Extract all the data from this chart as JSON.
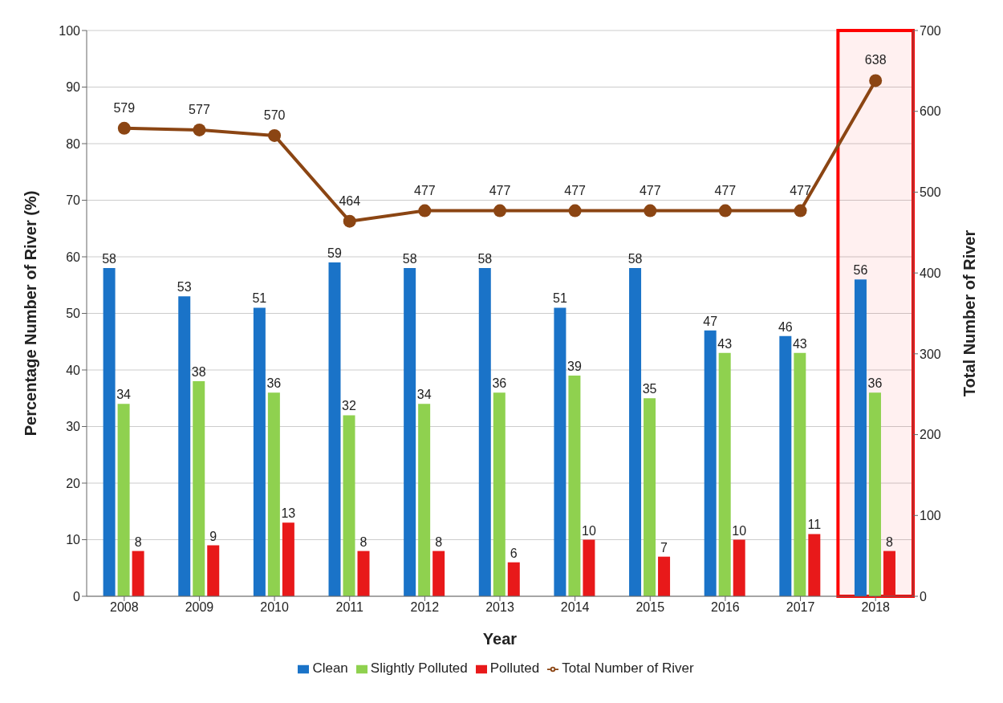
{
  "chart_data": {
    "type": "bar",
    "xlabel": "Year",
    "ylabel": "Percentage Number of River (%)",
    "y2label": "Total Number of River",
    "categories": [
      "2008",
      "2009",
      "2010",
      "2011",
      "2012",
      "2013",
      "2014",
      "2015",
      "2016",
      "2017",
      "2018"
    ],
    "series": [
      {
        "name": "Clean",
        "color": "#1a73c8",
        "values": [
          58,
          53,
          51,
          59,
          58,
          58,
          51,
          58,
          47,
          46,
          56
        ]
      },
      {
        "name": "Slightly Polluted",
        "color": "#8fd14f",
        "values": [
          34,
          38,
          36,
          32,
          34,
          36,
          39,
          35,
          43,
          43,
          36
        ]
      },
      {
        "name": "Polluted",
        "color": "#e8191a",
        "values": [
          8,
          9,
          13,
          8,
          8,
          6,
          10,
          7,
          10,
          11,
          8
        ]
      },
      {
        "name": "Total Number of River",
        "type": "line",
        "axis": "y2",
        "color": "#8b4513",
        "values": [
          579,
          577,
          570,
          464,
          477,
          477,
          477,
          477,
          477,
          477,
          638
        ]
      }
    ],
    "ylim": [
      0,
      100
    ],
    "yticks": [
      0,
      10,
      20,
      30,
      40,
      50,
      60,
      70,
      80,
      90,
      100
    ],
    "y2lim": [
      0,
      700
    ],
    "y2ticks": [
      0,
      100,
      200,
      300,
      400,
      500,
      600,
      700
    ],
    "bands": [
      {
        "axis": "x",
        "from": "2018",
        "to": "2018",
        "color": "#ff0000"
      }
    ],
    "data_labels": true,
    "grid": "y",
    "legend": "bottom",
    "marker": "circle"
  }
}
